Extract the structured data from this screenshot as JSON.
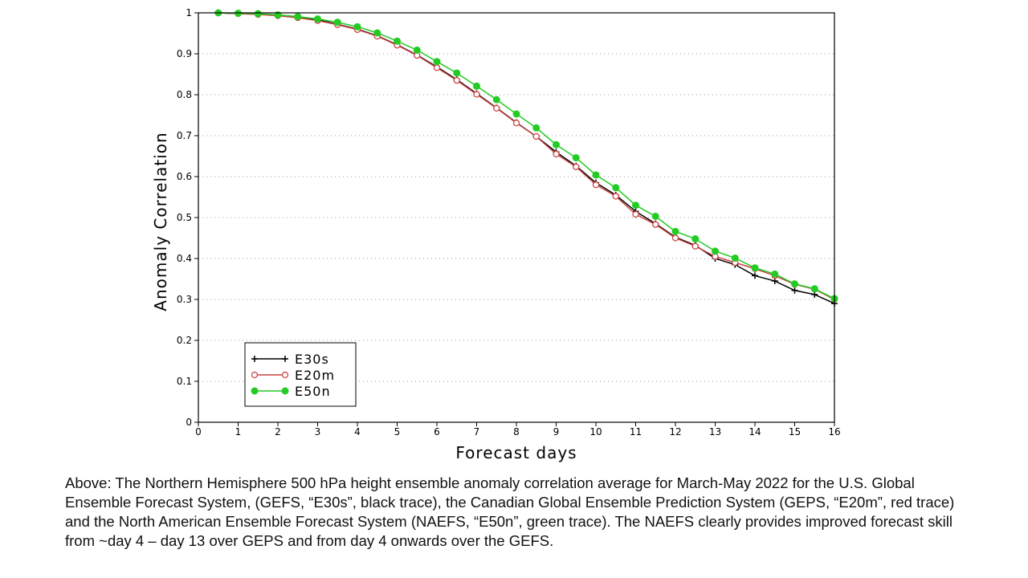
{
  "chart_data": {
    "type": "line",
    "xlabel": "Forecast days",
    "ylabel": "Anomaly Correlation",
    "xlim": [
      0,
      16
    ],
    "ylim": [
      0,
      1
    ],
    "x_ticks": [
      "0",
      "1",
      "2",
      "3",
      "4",
      "5",
      "6",
      "7",
      "8",
      "9",
      "10",
      "11",
      "12",
      "13",
      "14",
      "15",
      "16"
    ],
    "y_ticks": [
      "0",
      "0.1",
      "0.2",
      "0.3",
      "0.4",
      "0.5",
      "0.6",
      "0.7",
      "0.8",
      "0.9",
      "1"
    ],
    "grid": "horizontal dotted",
    "legend_position": "bottom-left",
    "x": [
      0.5,
      1,
      1.5,
      2,
      2.5,
      3,
      3.5,
      4,
      4.5,
      5,
      5.5,
      6,
      6.5,
      7,
      7.5,
      8,
      8.5,
      9,
      9.5,
      10,
      10.5,
      11,
      11.5,
      12,
      12.5,
      13,
      13.5,
      14,
      14.5,
      15,
      15.5,
      16
    ],
    "series": [
      {
        "name": "E30s",
        "color": "#000000",
        "marker": "plus",
        "values": [
          1.0,
          0.998,
          0.997,
          0.995,
          0.99,
          0.983,
          0.972,
          0.96,
          0.944,
          0.922,
          0.897,
          0.868,
          0.837,
          0.803,
          0.768,
          0.732,
          0.698,
          0.66,
          0.626,
          0.585,
          0.555,
          0.515,
          0.485,
          0.452,
          0.432,
          0.4,
          0.385,
          0.358,
          0.345,
          0.322,
          0.312,
          0.29
        ]
      },
      {
        "name": "E20m",
        "color": "#cc4444",
        "marker": "open-circle",
        "values": [
          1.0,
          0.998,
          0.996,
          0.993,
          0.988,
          0.981,
          0.971,
          0.959,
          0.943,
          0.921,
          0.896,
          0.866,
          0.835,
          0.801,
          0.767,
          0.731,
          0.698,
          0.655,
          0.624,
          0.58,
          0.552,
          0.508,
          0.483,
          0.45,
          0.43,
          0.405,
          0.39,
          0.375,
          0.358,
          0.337,
          0.325,
          0.3
        ]
      },
      {
        "name": "E50n",
        "color": "#22cc22",
        "marker": "filled-circle",
        "values": [
          1.0,
          0.999,
          0.998,
          0.995,
          0.991,
          0.985,
          0.977,
          0.966,
          0.951,
          0.931,
          0.909,
          0.881,
          0.853,
          0.821,
          0.788,
          0.753,
          0.719,
          0.678,
          0.646,
          0.604,
          0.573,
          0.53,
          0.503,
          0.466,
          0.448,
          0.418,
          0.401,
          0.377,
          0.362,
          0.338,
          0.326,
          0.302
        ]
      }
    ]
  },
  "caption": "Above: The Northern Hemisphere 500 hPa height ensemble anomaly correlation average for March-May 2022 for the U.S. Global Ensemble Forecast System, (GEFS, “E30s”, black trace), the Canadian Global Ensemble Prediction System (GEPS, “E20m”, red trace) and the North American Ensemble Forecast System (NAEFS, “E50n”, green trace). The NAEFS clearly provides improved forecast skill from ~day 4 – day 13 over GEPS and from day 4 onwards over the GEFS."
}
